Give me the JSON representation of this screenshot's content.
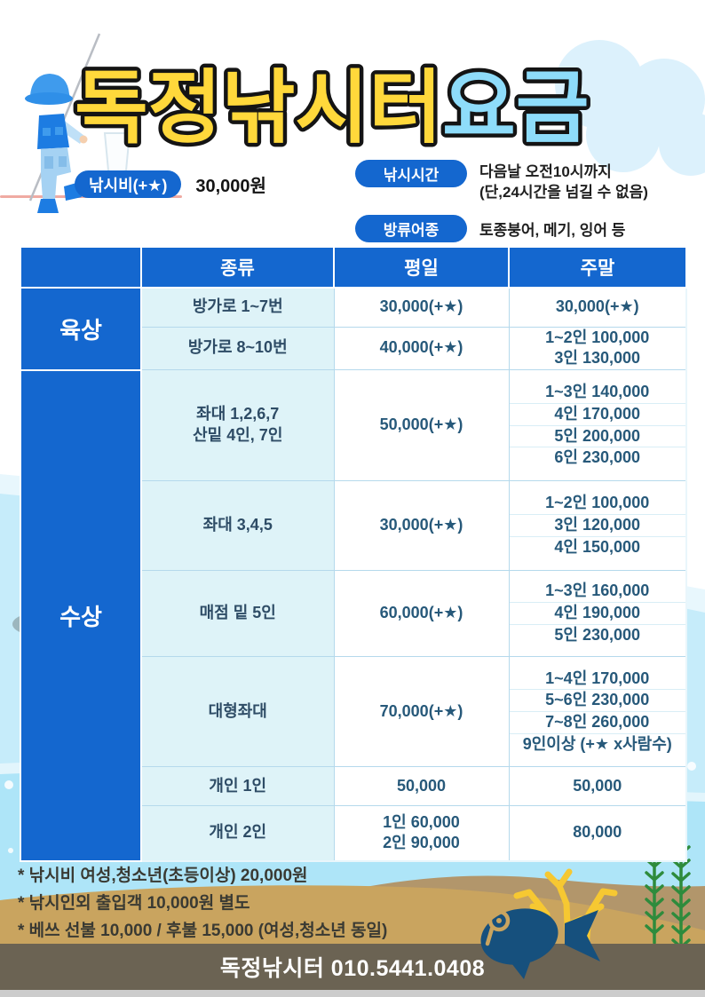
{
  "title": {
    "part1": "독정낚시터",
    "part2": "요금"
  },
  "info": {
    "fee_badge": "낚시비(+★)",
    "fee_value": "30,000원",
    "time_badge": "낚시시간",
    "time_line1": "다음날 오전10시까지",
    "time_line2": "(단,24시간을 넘길 수 없음)",
    "fish_badge": "방류어종",
    "fish_value": "토종붕어, 메기, 잉어 등"
  },
  "table": {
    "headers": [
      "종류",
      "평일",
      "주말"
    ],
    "groups": [
      {
        "label": "육상",
        "rows": [
          {
            "kind": [
              "방가로 1~7번"
            ],
            "weekday": [
              "30,000(+★)"
            ],
            "weekend": [
              "30,000(+★)"
            ]
          },
          {
            "kind": [
              "방가로 8~10번"
            ],
            "weekday": [
              "40,000(+★)"
            ],
            "weekend": [
              "1~2인 100,000",
              "3인 130,000"
            ]
          }
        ]
      },
      {
        "label": "수상",
        "rows": [
          {
            "kind": [
              "좌대 1,2,6,7",
              "산밑 4인, 7인"
            ],
            "weekday": [
              "50,000(+★)"
            ],
            "weekend": [
              "1~3인 140,000",
              "4인 170,000",
              "5인 200,000",
              "6인 230,000"
            ]
          },
          {
            "kind": [
              "좌대 3,4,5"
            ],
            "weekday": [
              "30,000(+★)"
            ],
            "weekend": [
              "1~2인 100,000",
              "3인 120,000",
              "4인 150,000"
            ]
          },
          {
            "kind": [
              "매점 밑 5인"
            ],
            "weekday": [
              "60,000(+★)"
            ],
            "weekend": [
              "1~3인 160,000",
              "4인 190,000",
              "5인 230,000"
            ]
          },
          {
            "kind": [
              "대형좌대"
            ],
            "weekday": [
              "70,000(+★)"
            ],
            "weekend": [
              "1~4인 170,000",
              "5~6인 230,000",
              "7~8인 260,000",
              "9인이상 (+★ x사람수)"
            ]
          },
          {
            "kind": [
              "개인 1인"
            ],
            "weekday": [
              "50,000"
            ],
            "weekend": [
              "50,000"
            ]
          },
          {
            "kind": [
              "개인 2인"
            ],
            "weekday": [
              "1인 60,000",
              "2인 90,000"
            ],
            "weekend": [
              "80,000"
            ]
          }
        ]
      }
    ]
  },
  "notes": [
    "* 낚시비 여성,청소년(초등이상) 20,000원",
    "* 낚시인외 출입객 10,000원 별도",
    "* 베쓰 선불 10,000 / 후불 15,000 (여성,청소년 동일)"
  ],
  "footer": {
    "contact": "독정낚시터 010.5441.0408"
  },
  "colors": {
    "accent_blue": "#1467cf",
    "title_yellow": "#ffd83b",
    "title_blue": "#8edcfa",
    "light_cell": "#def3f8",
    "price_text": "#27597a",
    "water": "#c6ecfa",
    "sand": "#c9a45f",
    "footer_olive": "#6b6353",
    "fish_navy": "#16507d",
    "coral_yellow": "#f6c832",
    "seaweed_green": "#2e8b3c"
  }
}
